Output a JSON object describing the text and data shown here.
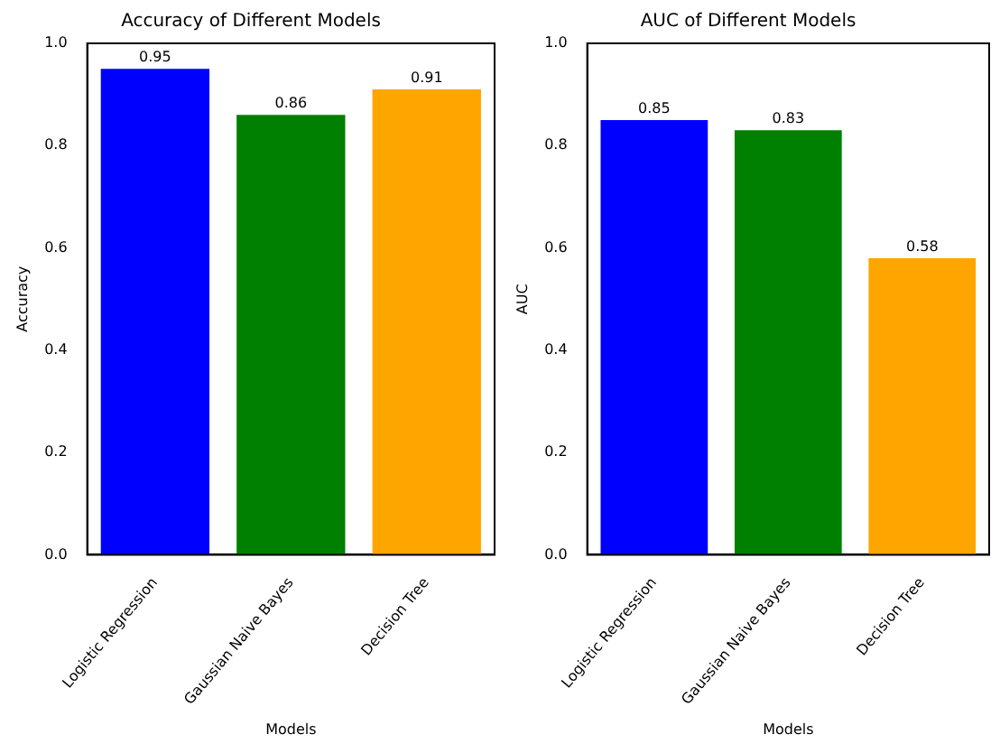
{
  "chart_data": [
    {
      "type": "bar",
      "title": "Accuracy of Different Models",
      "xlabel": "Models",
      "ylabel": "Accuracy",
      "categories": [
        "Logistic Regression",
        "Gaussian Naive Bayes",
        "Decision Tree"
      ],
      "values": [
        0.95,
        0.86,
        0.91
      ],
      "colors": [
        "#0000ff",
        "#008000",
        "#ffa500"
      ],
      "ylim": [
        0,
        1
      ],
      "yticks": [
        {
          "value": 0,
          "label": "0.0"
        },
        {
          "value": 0.2,
          "label": "0.2"
        },
        {
          "value": 0.4,
          "label": "0.4"
        },
        {
          "value": 0.6,
          "label": "0.6"
        },
        {
          "value": 0.8,
          "label": "0.8"
        },
        {
          "value": 1,
          "label": "1.0"
        }
      ],
      "data_labels": true
    },
    {
      "type": "bar",
      "title": "AUC of Different Models",
      "xlabel": "Models",
      "ylabel": "AUC",
      "categories": [
        "Logistic Regression",
        "Gaussian Naive Bayes",
        "Decision Tree"
      ],
      "values": [
        0.85,
        0.83,
        0.58
      ],
      "colors": [
        "#0000ff",
        "#008000",
        "#ffa500"
      ],
      "ylim": [
        0,
        1
      ],
      "yticks": [
        {
          "value": 0,
          "label": "0.0"
        },
        {
          "value": 0.2,
          "label": "0.2"
        },
        {
          "value": 0.4,
          "label": "0.4"
        },
        {
          "value": 0.6,
          "label": "0.6"
        },
        {
          "value": 0.8,
          "label": "0.8"
        },
        {
          "value": 1,
          "label": "1.0"
        }
      ],
      "data_labels": true
    }
  ]
}
